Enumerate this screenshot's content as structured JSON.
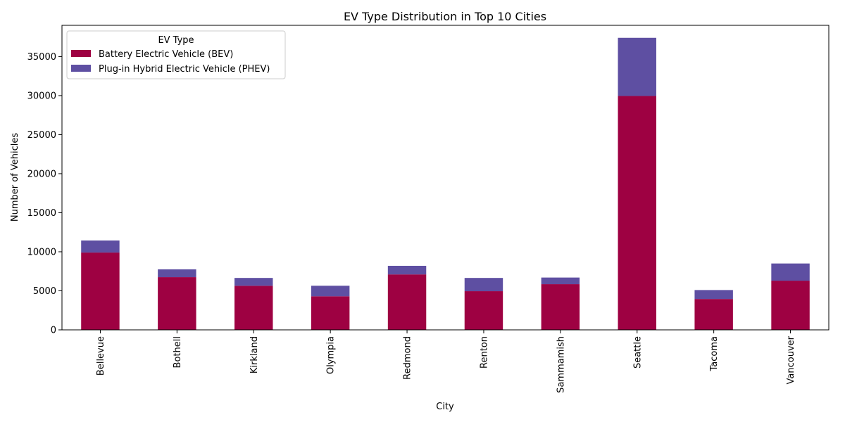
{
  "chart_data": {
    "type": "bar",
    "stacked": true,
    "title": "EV Type Distribution in Top 10 Cities",
    "xlabel": "City",
    "ylabel": "Number of Vehicles",
    "categories": [
      "Bellevue",
      "Bothell",
      "Kirkland",
      "Olympia",
      "Redmond",
      "Renton",
      "Sammamish",
      "Seattle",
      "Tacoma",
      "Vancouver"
    ],
    "series": [
      {
        "name": "Battery Electric Vehicle (BEV)",
        "color": "#9e0142",
        "values": [
          9900,
          6750,
          5650,
          4300,
          7100,
          4950,
          5850,
          29950,
          3950,
          6300
        ]
      },
      {
        "name": "Plug-in Hybrid Electric Vehicle (PHEV)",
        "color": "#5e4fa2",
        "values": [
          1550,
          1000,
          1000,
          1350,
          1100,
          1700,
          850,
          7450,
          1150,
          2200
        ]
      }
    ],
    "ylim": [
      0,
      39000
    ],
    "yticks": [
      0,
      5000,
      10000,
      15000,
      20000,
      25000,
      30000,
      35000
    ],
    "legend": {
      "title": "EV Type",
      "position": "top-left"
    },
    "grid": false
  }
}
